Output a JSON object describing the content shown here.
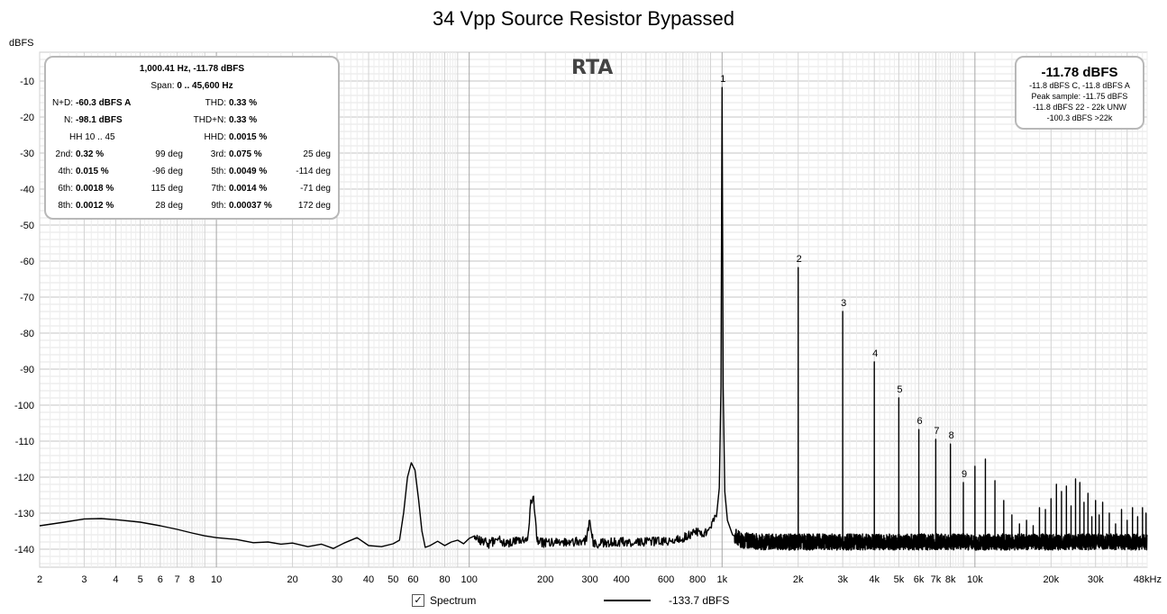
{
  "chart_data": {
    "type": "line",
    "title": "34 Vpp Source Resistor Bypassed",
    "ylabel": "dBFS",
    "xscale": "log",
    "xlim": [
      2,
      48000
    ],
    "ylim": [
      -145,
      -2
    ],
    "grid": true,
    "y_ticks": [
      -10,
      -20,
      -30,
      -40,
      -50,
      -60,
      -70,
      -80,
      -90,
      -100,
      -110,
      -120,
      -130,
      -140
    ],
    "x_ticks": [
      {
        "v": 2,
        "label": "2"
      },
      {
        "v": 3,
        "label": "3"
      },
      {
        "v": 4,
        "label": "4"
      },
      {
        "v": 5,
        "label": "5"
      },
      {
        "v": 6,
        "label": "6"
      },
      {
        "v": 7,
        "label": "7"
      },
      {
        "v": 8,
        "label": "8"
      },
      {
        "v": 10,
        "label": "10"
      },
      {
        "v": 20,
        "label": "20"
      },
      {
        "v": 30,
        "label": "30"
      },
      {
        "v": 40,
        "label": "40"
      },
      {
        "v": 50,
        "label": "50"
      },
      {
        "v": 60,
        "label": "60"
      },
      {
        "v": 80,
        "label": "80"
      },
      {
        "v": 100,
        "label": "100"
      },
      {
        "v": 200,
        "label": "200"
      },
      {
        "v": 300,
        "label": "300"
      },
      {
        "v": 400,
        "label": "400"
      },
      {
        "v": 600,
        "label": "600"
      },
      {
        "v": 800,
        "label": "800"
      },
      {
        "v": 1000,
        "label": "1k"
      },
      {
        "v": 2000,
        "label": "2k"
      },
      {
        "v": 3000,
        "label": "3k"
      },
      {
        "v": 4000,
        "label": "4k"
      },
      {
        "v": 5000,
        "label": "5k"
      },
      {
        "v": 6000,
        "label": "6k"
      },
      {
        "v": 7000,
        "label": "7k"
      },
      {
        "v": 8000,
        "label": "8k"
      },
      {
        "v": 10000,
        "label": "10k"
      },
      {
        "v": 20000,
        "label": "20k"
      },
      {
        "v": 30000,
        "label": "30k"
      },
      {
        "v": 48000,
        "label": "48kHz"
      }
    ],
    "series": [
      {
        "name": "Spectrum",
        "legend_value": "-133.7 dBFS",
        "color": "#000000",
        "envelope": [
          [
            2,
            -133.5
          ],
          [
            2.5,
            -132.5
          ],
          [
            3,
            -131.6
          ],
          [
            3.5,
            -131.5
          ],
          [
            4,
            -131.8
          ],
          [
            5,
            -132.5
          ],
          [
            6,
            -133.5
          ],
          [
            7,
            -134.5
          ],
          [
            8,
            -135.5
          ],
          [
            9,
            -136.3
          ],
          [
            10,
            -136.8
          ],
          [
            12,
            -137.3
          ],
          [
            14,
            -138.2
          ],
          [
            16,
            -138.0
          ],
          [
            18,
            -138.6
          ],
          [
            20,
            -138.3
          ],
          [
            23,
            -139.3
          ],
          [
            26,
            -138.6
          ],
          [
            29,
            -139.8
          ],
          [
            32,
            -138.3
          ],
          [
            36,
            -136.8
          ],
          [
            40,
            -139.0
          ],
          [
            45,
            -139.3
          ],
          [
            50,
            -138.5
          ],
          [
            53,
            -137.5
          ],
          [
            55,
            -130.0
          ],
          [
            57,
            -120.0
          ],
          [
            59,
            -116.0
          ],
          [
            61,
            -118.0
          ],
          [
            63,
            -126.0
          ],
          [
            65,
            -135.0
          ],
          [
            67,
            -139.5
          ],
          [
            70,
            -139.0
          ],
          [
            75,
            -137.8
          ],
          [
            80,
            -139.0
          ],
          [
            85,
            -138.0
          ],
          [
            90,
            -137.5
          ],
          [
            95,
            -138.5
          ],
          [
            100,
            -137.0
          ],
          [
            105,
            -136.3
          ],
          [
            110,
            -137.5
          ],
          [
            120,
            -138.5
          ],
          [
            130,
            -137.0
          ],
          [
            140,
            -138.5
          ],
          [
            150,
            -138.0
          ],
          [
            160,
            -137.8
          ],
          [
            170,
            -137.5
          ],
          [
            175,
            -127.0
          ],
          [
            180,
            -126.5
          ],
          [
            185,
            -137.0
          ],
          [
            190,
            -138.0
          ],
          [
            200,
            -138.3
          ],
          [
            250,
            -138.0
          ],
          [
            290,
            -137.5
          ],
          [
            300,
            -132.0
          ],
          [
            310,
            -138.5
          ],
          [
            400,
            -138.0
          ],
          [
            500,
            -138.0
          ],
          [
            600,
            -137.8
          ],
          [
            700,
            -137.0
          ],
          [
            800,
            -135.0
          ],
          [
            850,
            -135.5
          ],
          [
            900,
            -134.0
          ],
          [
            950,
            -131.0
          ],
          [
            975,
            -123.0
          ],
          [
            990,
            -95.0
          ],
          [
            1000,
            -11.8
          ],
          [
            1010,
            -95.0
          ],
          [
            1025,
            -124.0
          ],
          [
            1050,
            -132.0
          ],
          [
            1100,
            -136.0
          ],
          [
            1200,
            -137.5
          ],
          [
            1500,
            -138.0
          ],
          [
            3000,
            -138.0
          ],
          [
            10000,
            -138.0
          ],
          [
            48000,
            -138.0
          ]
        ],
        "spikes": [
          [
            2000,
            -61.8
          ],
          [
            3000,
            -74.0
          ],
          [
            4000,
            -88.0
          ],
          [
            5000,
            -98.0
          ],
          [
            6000,
            -106.8
          ],
          [
            7000,
            -109.5
          ],
          [
            8000,
            -110.8
          ],
          [
            9000,
            -121.5
          ],
          [
            10000,
            -117.0
          ],
          [
            11000,
            -115.0
          ],
          [
            12000,
            -121.0
          ],
          [
            13000,
            -126.5
          ],
          [
            14000,
            -130.5
          ],
          [
            15000,
            -133.0
          ],
          [
            16000,
            -132.0
          ],
          [
            17000,
            -133.5
          ],
          [
            18000,
            -128.5
          ],
          [
            19000,
            -129.0
          ],
          [
            20000,
            -126.0
          ],
          [
            21000,
            -122.0
          ],
          [
            22000,
            -124.0
          ],
          [
            23000,
            -122.5
          ],
          [
            24000,
            -128.0
          ],
          [
            25000,
            -120.5
          ],
          [
            26000,
            -121.5
          ],
          [
            27000,
            -127.0
          ],
          [
            28000,
            -124.5
          ],
          [
            29000,
            -131.0
          ],
          [
            30000,
            -126.5
          ],
          [
            31000,
            -130.5
          ],
          [
            32000,
            -127.0
          ],
          [
            34000,
            -130.0
          ],
          [
            36000,
            -133.0
          ],
          [
            38000,
            -129.0
          ],
          [
            40000,
            -132.0
          ],
          [
            42000,
            -128.5
          ],
          [
            44000,
            -131.0
          ],
          [
            46000,
            -128.5
          ],
          [
            47500,
            -130.0
          ]
        ],
        "harmonic_markers": [
          {
            "label": "1",
            "f": 1000,
            "db": -11.8
          },
          {
            "label": "2",
            "f": 2000,
            "db": -61.8
          },
          {
            "label": "3",
            "f": 3000,
            "db": -74.0
          },
          {
            "label": "4",
            "f": 4000,
            "db": -88.0
          },
          {
            "label": "5",
            "f": 5000,
            "db": -98.0
          },
          {
            "label": "6",
            "f": 6000,
            "db": -106.8
          },
          {
            "label": "7",
            "f": 7000,
            "db": -109.5
          },
          {
            "label": "8",
            "f": 8000,
            "db": -110.8
          },
          {
            "label": "9",
            "f": 9000,
            "db": -121.5
          }
        ]
      }
    ]
  },
  "rta_label": "RTA",
  "stats": {
    "header": "1,000.41 Hz, -11.78 dBFS",
    "span_label": "Span:",
    "span_value": "0 .. 45,600 Hz",
    "nd_label": "N+D:",
    "nd_value": "-60.3 dBFS A",
    "thd_label": "THD:",
    "thd_value": "0.33 %",
    "n_label": "N:",
    "n_value": "-98.1 dBFS",
    "thdn_label": "THD+N:",
    "thdn_value": "0.33 %",
    "hh": "HH 10 .. 45",
    "hhd_label": "HHD:",
    "hhd_value": "0.0015 %",
    "harmonics": [
      {
        "l1": "2nd:",
        "v1": "0.32 %",
        "d1": "99 deg",
        "l2": "3rd:",
        "v2": "0.075 %",
        "d2": "25 deg"
      },
      {
        "l1": "4th:",
        "v1": "0.015 %",
        "d1": "-96 deg",
        "l2": "5th:",
        "v2": "0.0049 %",
        "d2": "-114 deg"
      },
      {
        "l1": "6th:",
        "v1": "0.0018 %",
        "d1": "115 deg",
        "l2": "7th:",
        "v2": "0.0014 %",
        "d2": "-71 deg"
      },
      {
        "l1": "8th:",
        "v1": "0.0012 %",
        "d1": "28 deg",
        "l2": "9th:",
        "v2": "0.00037 %",
        "d2": "172 deg"
      }
    ]
  },
  "level": {
    "main": "-11.78 dBFS",
    "line1": "-11.8 dBFS C, -11.8 dBFS A",
    "line2": "Peak sample: -11.75 dBFS",
    "line3": "-11.8 dBFS 22 - 22k UNW",
    "line4": "-100.3 dBFS >22k"
  },
  "legend": {
    "checkbox_mark": "✓",
    "series_name": "Spectrum",
    "series_value": "-133.7 dBFS"
  }
}
